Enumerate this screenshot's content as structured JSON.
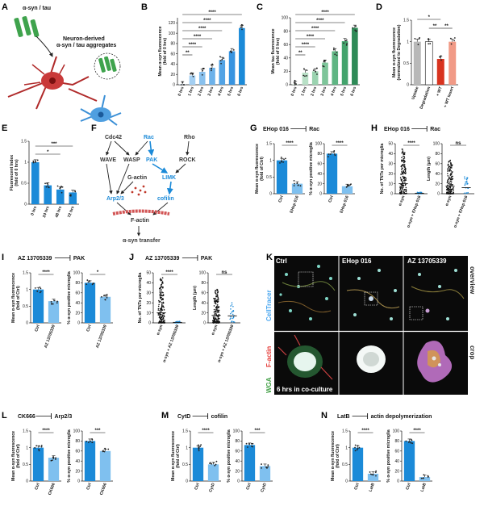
{
  "panels": {
    "A": {
      "label": "A",
      "texts": [
        "α-syn / tau",
        "Neuron-derived",
        "α-syn / tau aggregates"
      ]
    },
    "B": {
      "label": "B",
      "ylabel": "Mean α-syn fluorescence",
      "ylabel2": "(fold of 0 hrs)",
      "sigs": [
        "****",
        "****",
        "****",
        "****",
        "****",
        "**"
      ]
    },
    "C": {
      "label": "C",
      "ylabel": "Mean tau fluorescence",
      "ylabel2": "(fold of 0 hrs)",
      "sigs": [
        "****",
        "****",
        "****",
        "****",
        "****",
        "**"
      ]
    },
    "D": {
      "label": "D",
      "ylabel": "Mean α-syn fluorescence",
      "ylabel2": "(normalized to Degradation)",
      "sigs": [
        "*",
        "**",
        "**"
      ]
    },
    "E": {
      "label": "E",
      "ylabel": "Fluorescent Index",
      "ylabel2": "(fold of 0 hrs)",
      "sigs": [
        "***",
        "*"
      ]
    },
    "F": {
      "label": "F",
      "nodes": {
        "cdc42": "Cdc42",
        "rac": "Rac",
        "rho": "Rho",
        "wave": "WAVE",
        "wasp": "WASP",
        "pak": "PAK",
        "rock": "ROCK",
        "gactin": "G-actin",
        "limk": "LIMK",
        "arp": "Arp2/3",
        "cofilin": "cofilin",
        "factin": "F-actin",
        "transfer": "α-syn transfer"
      }
    },
    "G": {
      "label": "G",
      "inhibitor": "EHop 016",
      "target": "Rac",
      "ylabel_left": "Mean α-syn fluorescence",
      "ylabel_left2": "(fold of Ctrl)",
      "ylabel_right": "% α-syn positive microglia",
      "cats": [
        "Ctrl",
        "EHop 016"
      ],
      "sigs": [
        "****",
        "****"
      ]
    },
    "H": {
      "label": "H",
      "inhibitor": "EHop 016",
      "target": "Rac",
      "ylabel_left": "No. of TNTs per microglia",
      "ylabel_right": "Length (μm)",
      "cats": [
        "α-syn",
        "α-syn + EHop 016"
      ],
      "sigs": [
        "****",
        "ns"
      ]
    },
    "I": {
      "label": "I",
      "inhibitor": "AZ 13705339",
      "target": "PAK",
      "ylabel_left": "Mean α-syn fluorescence",
      "ylabel_left2": "(fold of Ctrl)",
      "ylabel_right": "% α-syn positive microglia",
      "cats": [
        "Ctrl",
        "AZ 13705339"
      ],
      "sigs": [
        "****",
        "*"
      ]
    },
    "J": {
      "label": "J",
      "inhibitor": "AZ 13705339",
      "target": "PAK",
      "ylabel_left": "No. of TNTs per microglia",
      "ylabel_right": "Length (μm)",
      "cats": [
        "α-syn",
        "α-syn + AZ 13705339"
      ],
      "sigs": [
        "****",
        "ns"
      ]
    },
    "K": {
      "label": "K",
      "cols": [
        "Ctrl",
        "EHop 016",
        "AZ 13705339"
      ],
      "rows": [
        "overview",
        "crop"
      ],
      "stains": [
        "CellTracer",
        "F-actin",
        "WGA"
      ],
      "caption": "6 hrs in co-culture"
    },
    "L": {
      "label": "L",
      "inhibitor": "CK666",
      "target": "Arp2/3",
      "ylabel_left": "Mean α-syn fluorescence",
      "ylabel_left2": "(fold of Ctrl)",
      "ylabel_right": "% α-syn positive microglia",
      "cats": [
        "Ctrl",
        "CK666"
      ],
      "sigs": [
        "****",
        "***"
      ]
    },
    "M": {
      "label": "M",
      "inhibitor": "CytD",
      "target": "cofilin",
      "ylabel_left": "Mean α-syn fluorescence",
      "ylabel_left2": "(fold of Ctrl)",
      "ylabel_right": "% α-syn positive microglia",
      "cats": [
        "Ctrl",
        "CytD"
      ],
      "sigs": [
        "****",
        "***"
      ]
    },
    "N": {
      "label": "N",
      "inhibitor": "LatB",
      "target": "actin depolymerization",
      "ylabel_left": "Mean α-syn fluorescence",
      "ylabel_left2": "(fold of Ctrl)",
      "ylabel_right": "% α-syn positive microglia",
      "cats": [
        "Ctrl",
        "LatB"
      ],
      "sigs": [
        "****",
        "****"
      ]
    }
  },
  "chart_data": [
    {
      "id": "B",
      "type": "bar",
      "categories": [
        "0 hrs",
        "1 hrs",
        "2 hrs",
        "3 hrs",
        "4 hrs",
        "5 hrs",
        "6 hrs"
      ],
      "values": [
        1,
        18,
        25,
        33,
        48,
        65,
        110
      ],
      "ylim": [
        0,
        130
      ],
      "yticks": [
        0,
        20,
        40,
        60,
        80,
        100,
        120
      ],
      "ylabel": "Mean α-syn fluorescence (fold of 0 hrs)",
      "colors": [
        "#bcdcf5",
        "#a3cff2",
        "#88c1ee",
        "#6db2ea",
        "#52a3e5",
        "#3894e0",
        "#1b8ad8"
      ]
    },
    {
      "id": "C",
      "type": "bar",
      "categories": [
        "0 hrs",
        "1 hrs",
        "2 hrs",
        "3 hrs",
        "4 hrs",
        "5 hrs",
        "6 hrs"
      ],
      "values": [
        1,
        18,
        20,
        33,
        50,
        65,
        85
      ],
      "ylim": [
        0,
        100
      ],
      "yticks": [
        0,
        20,
        40,
        60,
        80,
        100
      ],
      "ylabel": "Mean tau fluorescence (fold of 0 hrs)",
      "colors": [
        "#d3ecdc",
        "#b8e0c6",
        "#9bd3b0",
        "#7ec59a",
        "#5fb583",
        "#43a36c",
        "#2e8a57"
      ]
    },
    {
      "id": "D",
      "type": "bar",
      "categories": [
        "Uptake",
        "Degradation",
        "+ WT",
        "+ WT Insert"
      ],
      "values": [
        1.0,
        1.0,
        0.6,
        1.0
      ],
      "ylim": [
        0,
        1.5
      ],
      "yticks": [
        0,
        0.5,
        1.0,
        1.5
      ],
      "ylabel": "Mean α-syn fluorescence (normalized to Degradation)",
      "colors": [
        "#b8b8b8",
        "#ffffff",
        "#d8331f",
        "#f19a86"
      ]
    },
    {
      "id": "E",
      "type": "bar",
      "categories": [
        "0 hrs",
        "24 hrs",
        "48 hrs",
        "72 hrs"
      ],
      "values": [
        1.0,
        0.45,
        0.35,
        0.28
      ],
      "ylim": [
        0,
        1.5
      ],
      "yticks": [
        0,
        0.5,
        1.0,
        1.5
      ],
      "ylabel": "Fluorescent Index (fold of 0 hrs)",
      "colors": [
        "#1b8ad8",
        "#1b8ad8",
        "#1b8ad8",
        "#1b8ad8"
      ]
    },
    {
      "id": "G1",
      "type": "bar",
      "categories": [
        "Ctrl",
        "EHop 016"
      ],
      "values": [
        1.0,
        0.3
      ],
      "ylim": [
        0,
        1.5
      ],
      "yticks": [
        0,
        0.5,
        1.0,
        1.5
      ]
    },
    {
      "id": "G2",
      "type": "bar",
      "categories": [
        "Ctrl",
        "EHop 016"
      ],
      "values": [
        80,
        15
      ],
      "ylim": [
        0,
        100
      ],
      "yticks": [
        0,
        20,
        40,
        60,
        80,
        100
      ]
    },
    {
      "id": "H1",
      "type": "scatter",
      "categories": [
        "α-syn",
        "α-syn + EHop 016"
      ],
      "values": [
        10,
        0.5
      ],
      "ylim": [
        0,
        50
      ],
      "yticks": [
        0,
        10,
        20,
        30,
        40,
        50
      ]
    },
    {
      "id": "H2",
      "type": "scatter",
      "categories": [
        "α-syn",
        "α-syn + EHop 016"
      ],
      "values": [
        15,
        12
      ],
      "ylim": [
        0,
        100
      ],
      "yticks": [
        0,
        20,
        40,
        60,
        80,
        100
      ]
    },
    {
      "id": "I1",
      "type": "bar",
      "categories": [
        "Ctrl",
        "AZ 13705339"
      ],
      "values": [
        1.0,
        0.65
      ],
      "ylim": [
        0,
        1.5
      ],
      "yticks": [
        0,
        0.5,
        1.0,
        1.5
      ]
    },
    {
      "id": "I2",
      "type": "bar",
      "categories": [
        "Ctrl",
        "AZ 13705339"
      ],
      "values": [
        80,
        52
      ],
      "ylim": [
        0,
        100
      ],
      "yticks": [
        0,
        20,
        40,
        60,
        80,
        100
      ]
    },
    {
      "id": "J1",
      "type": "scatter",
      "categories": [
        "α-syn",
        "α-syn + AZ 13705339"
      ],
      "values": [
        10,
        0.5
      ],
      "ylim": [
        0,
        50
      ],
      "yticks": [
        0,
        10,
        20,
        30,
        40,
        50
      ]
    },
    {
      "id": "J2",
      "type": "scatter",
      "categories": [
        "α-syn",
        "α-syn + AZ 13705339"
      ],
      "values": [
        15,
        14
      ],
      "ylim": [
        0,
        100
      ],
      "yticks": [
        0,
        20,
        40,
        60,
        80,
        100
      ]
    },
    {
      "id": "L1",
      "type": "bar",
      "categories": [
        "Ctrl",
        "CK666"
      ],
      "values": [
        1.0,
        0.7
      ],
      "ylim": [
        0,
        1.5
      ],
      "yticks": [
        0,
        0.5,
        1.0,
        1.5
      ]
    },
    {
      "id": "L2",
      "type": "bar",
      "categories": [
        "Ctrl",
        "CK666"
      ],
      "values": [
        80,
        60
      ],
      "ylim": [
        0,
        100
      ],
      "yticks": [
        0,
        20,
        40,
        60,
        80,
        100
      ]
    },
    {
      "id": "M1",
      "type": "bar",
      "categories": [
        "Ctrl",
        "CytD"
      ],
      "values": [
        1.0,
        0.5
      ],
      "ylim": [
        0,
        1.5
      ],
      "yticks": [
        0,
        0.5,
        1.0,
        1.5
      ]
    },
    {
      "id": "M2",
      "type": "bar",
      "categories": [
        "Ctrl",
        "CytD"
      ],
      "values": [
        72,
        30
      ],
      "ylim": [
        0,
        100
      ],
      "yticks": [
        0,
        20,
        40,
        60,
        80,
        100
      ]
    },
    {
      "id": "N1",
      "type": "bar",
      "categories": [
        "Ctrl",
        "LatB"
      ],
      "values": [
        1.0,
        0.22
      ],
      "ylim": [
        0,
        1.5
      ],
      "yticks": [
        0,
        0.5,
        1.0,
        1.5
      ]
    },
    {
      "id": "N2",
      "type": "bar",
      "categories": [
        "Ctrl",
        "LatB"
      ],
      "values": [
        80,
        8
      ],
      "ylim": [
        0,
        100
      ],
      "yticks": [
        0,
        20,
        40,
        60,
        80,
        100
      ]
    }
  ],
  "colors": {
    "blue": "#1b8ad8",
    "lightblue": "#7fc0ef",
    "red": "#d8331f",
    "green": "#2e8a57",
    "neuron": "#b02a2a",
    "microglia": "#3a8fd6"
  }
}
